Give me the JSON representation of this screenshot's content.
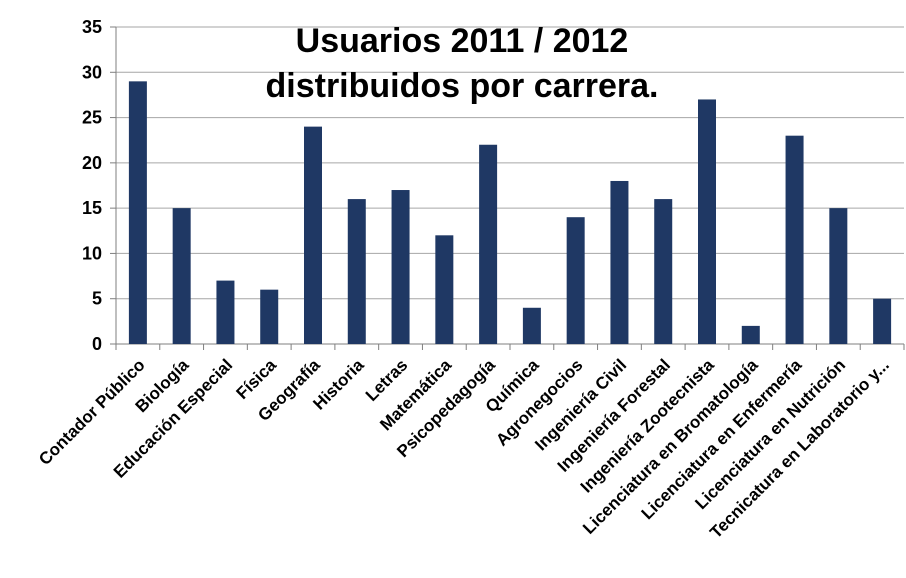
{
  "chart_data": {
    "type": "bar",
    "title_lines": [
      "Usuarios 2011 / 2012",
      "distribuidos por carrera."
    ],
    "categories": [
      "Contador Público",
      "Biología",
      "Educación Especial",
      "Física",
      "Geografía",
      "Historia",
      "Letras",
      "Matemática",
      "Psicopedagogía",
      "Química",
      "Agronegocios",
      "Ingeniería Civil",
      "Ingeniería Forestal",
      "Ingeniería Zootecnista",
      "Licenciatura en Bromatología",
      "Licenciatura en Enfermería",
      "Licenciatura en Nutrición",
      "Tecnicatura en Laboratorio y..."
    ],
    "values": [
      29,
      15,
      7,
      6,
      24,
      16,
      17,
      12,
      22,
      4,
      14,
      18,
      16,
      27,
      2,
      23,
      15,
      5
    ],
    "ylim": [
      0,
      35
    ],
    "yticks": [
      "0",
      "5",
      "10",
      "15",
      "20",
      "25",
      "30",
      "35"
    ],
    "grid": true,
    "legend": "none",
    "colors": {
      "bar": "#1f3864",
      "grid": "#a6a6a6",
      "axis": "#7f7f7f"
    }
  }
}
